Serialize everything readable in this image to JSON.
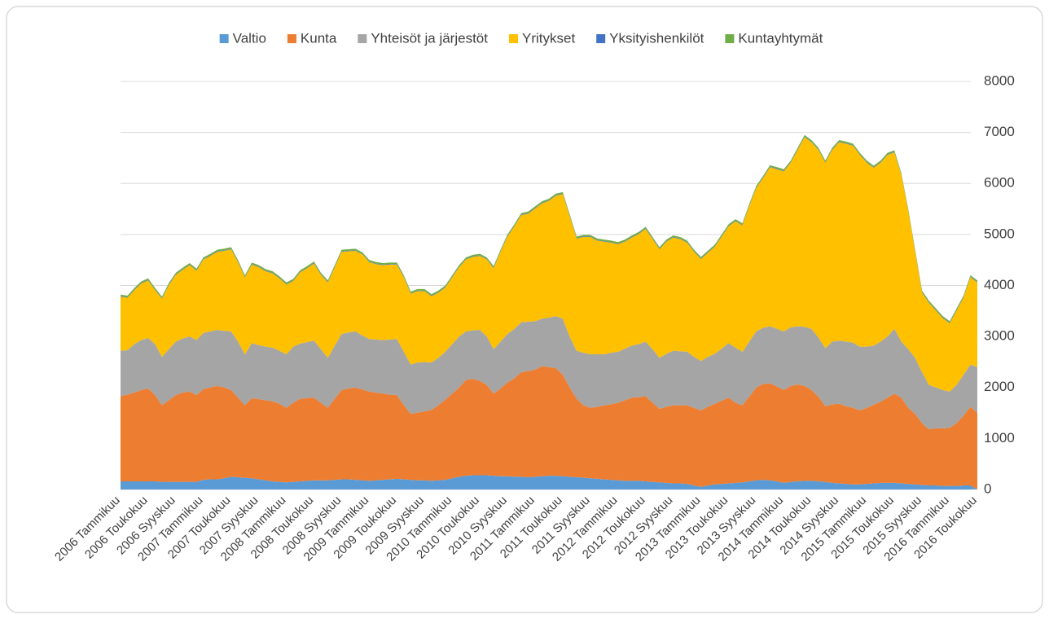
{
  "chart_data": {
    "type": "stacked-area",
    "categories": [
      "2006 Tammikuu",
      null,
      null,
      null,
      "2006 Toukokuu",
      null,
      null,
      null,
      "2006 Syyskuu",
      null,
      null,
      null,
      "2007 Tammikuu",
      null,
      null,
      null,
      "2007 Toukokuu",
      null,
      null,
      null,
      "2007 Syyskuu",
      null,
      null,
      null,
      "2008 Tammikuu",
      null,
      null,
      null,
      "2008 Toukokuu",
      null,
      null,
      null,
      "2008 Syyskuu",
      null,
      null,
      null,
      "2009 Tammikuu",
      null,
      null,
      null,
      "2009 Toukokuu",
      null,
      null,
      null,
      "2009 Syyskuu",
      null,
      null,
      null,
      "2010 Tammikuu",
      null,
      null,
      null,
      "2010 Toukokuu",
      null,
      null,
      null,
      "2010 Syyskuu",
      null,
      null,
      null,
      "2011 Tammikuu",
      null,
      null,
      null,
      "2011 Toukokuu",
      null,
      null,
      null,
      "2011 Syyskuu",
      null,
      null,
      null,
      "2012 Tammikuu",
      null,
      null,
      null,
      "2012 Toukokuu",
      null,
      null,
      null,
      "2012 Syyskuu",
      null,
      null,
      null,
      "2013 Tammikuu",
      null,
      null,
      null,
      "2013 Toukokuu",
      null,
      null,
      null,
      "2013 Syyskuu",
      null,
      null,
      null,
      "2014 Tammikuu",
      null,
      null,
      null,
      "2014 Toukokuu",
      null,
      null,
      null,
      "2014 Syyskuu",
      null,
      null,
      null,
      "2015 Tammikuu",
      null,
      null,
      null,
      "2015 Toukokuu",
      null,
      null,
      null,
      "2015 Syyskuu",
      null,
      null,
      null,
      "2016 Tammikuu",
      null,
      null,
      null,
      "2016 Toukokuu"
    ],
    "series": [
      {
        "name": "Valtio",
        "color": "#5b9bd5",
        "values": [
          160,
          160,
          160,
          160,
          160,
          160,
          150,
          150,
          150,
          150,
          150,
          150,
          190,
          200,
          200,
          220,
          250,
          240,
          230,
          220,
          200,
          180,
          160,
          150,
          140,
          150,
          160,
          170,
          180,
          180,
          180,
          190,
          200,
          200,
          190,
          180,
          170,
          180,
          190,
          200,
          210,
          200,
          190,
          180,
          180,
          170,
          180,
          190,
          220,
          250,
          270,
          280,
          280,
          280,
          270,
          260,
          260,
          250,
          250,
          240,
          250,
          260,
          270,
          270,
          260,
          250,
          240,
          230,
          220,
          210,
          200,
          190,
          180,
          170,
          170,
          170,
          160,
          150,
          140,
          130,
          120,
          120,
          110,
          80,
          50,
          80,
          100,
          110,
          120,
          130,
          140,
          160,
          180,
          190,
          180,
          160,
          130,
          150,
          160,
          170,
          170,
          160,
          150,
          130,
          120,
          110,
          100,
          100,
          110,
          120,
          130,
          130,
          130,
          120,
          110,
          100,
          90,
          80,
          80,
          70,
          70,
          70,
          80,
          80,
          0
        ]
      },
      {
        "name": "Kunta",
        "color": "#ed7d31",
        "values": [
          1670,
          1700,
          1740,
          1790,
          1820,
          1690,
          1500,
          1600,
          1700,
          1750,
          1770,
          1700,
          1780,
          1800,
          1830,
          1780,
          1700,
          1560,
          1420,
          1570,
          1570,
          1570,
          1570,
          1530,
          1460,
          1550,
          1620,
          1620,
          1620,
          1520,
          1420,
          1590,
          1750,
          1780,
          1810,
          1780,
          1750,
          1720,
          1690,
          1660,
          1640,
          1450,
          1290,
          1330,
          1350,
          1390,
          1470,
          1570,
          1660,
          1750,
          1880,
          1890,
          1850,
          1770,
          1610,
          1720,
          1840,
          1930,
          2050,
          2080,
          2100,
          2160,
          2130,
          2110,
          1990,
          1750,
          1540,
          1420,
          1380,
          1410,
          1450,
          1480,
          1520,
          1580,
          1630,
          1640,
          1670,
          1550,
          1440,
          1490,
          1530,
          1530,
          1540,
          1520,
          1500,
          1540,
          1580,
          1630,
          1680,
          1570,
          1510,
          1660,
          1820,
          1880,
          1900,
          1860,
          1820,
          1880,
          1900,
          1860,
          1780,
          1660,
          1480,
          1540,
          1560,
          1520,
          1500,
          1450,
          1490,
          1540,
          1590,
          1670,
          1750,
          1680,
          1490,
          1380,
          1210,
          1100,
          1120,
          1130,
          1140,
          1230,
          1370,
          1540,
          1500
        ]
      },
      {
        "name": "Yhteisöt ja järjestöt",
        "color": "#a5a5a5",
        "values": [
          890,
          870,
          950,
          980,
          990,
          1000,
          950,
          1000,
          1050,
          1060,
          1080,
          1080,
          1100,
          1100,
          1100,
          1110,
          1150,
          1100,
          1000,
          1080,
          1060,
          1050,
          1050,
          1040,
          1050,
          1100,
          1080,
          1100,
          1120,
          1050,
          980,
          1040,
          1100,
          1100,
          1100,
          1060,
          1030,
          1040,
          1050,
          1080,
          1100,
          1050,
          970,
          980,
          970,
          930,
          930,
          940,
          970,
          1000,
          950,
          950,
          1000,
          950,
          870,
          920,
          950,
          970,
          980,
          970,
          950,
          930,
          970,
          1020,
          1100,
          1000,
          940,
          1030,
          1050,
          1030,
          1000,
          1010,
          1000,
          1010,
          1020,
          1040,
          1070,
          1050,
          1000,
          1040,
          1070,
          1060,
          1050,
          1000,
          970,
          980,
          980,
          1020,
          1070,
          1080,
          1050,
          1080,
          1100,
          1100,
          1120,
          1130,
          1150,
          1150,
          1140,
          1160,
          1200,
          1160,
          1140,
          1230,
          1240,
          1270,
          1280,
          1250,
          1200,
          1160,
          1180,
          1200,
          1270,
          1100,
          1150,
          1100,
          1000,
          870,
          800,
          750,
          710,
          750,
          800,
          830,
          900
        ]
      },
      {
        "name": "Yritykset",
        "color": "#ffc000",
        "values": [
          1060,
          1030,
          1060,
          1110,
          1130,
          1060,
          1140,
          1260,
          1310,
          1350,
          1400,
          1360,
          1440,
          1480,
          1530,
          1570,
          1610,
          1560,
          1510,
          1540,
          1530,
          1480,
          1460,
          1420,
          1370,
          1290,
          1400,
          1450,
          1510,
          1460,
          1480,
          1540,
          1610,
          1590,
          1580,
          1590,
          1510,
          1480,
          1470,
          1470,
          1460,
          1460,
          1390,
          1400,
          1390,
          1300,
          1280,
          1260,
          1310,
          1360,
          1410,
          1440,
          1450,
          1510,
          1590,
          1760,
          1910,
          2010,
          2100,
          2120,
          2210,
          2260,
          2290,
          2360,
          2440,
          2360,
          2200,
          2270,
          2300,
          2230,
          2210,
          2160,
          2110,
          2100,
          2120,
          2160,
          2210,
          2160,
          2130,
          2200,
          2220,
          2200,
          2140,
          2060,
          2000,
          2040,
          2100,
          2200,
          2290,
          2480,
          2480,
          2660,
          2810,
          2940,
          3120,
          3130,
          3140,
          3230,
          3460,
          3720,
          3660,
          3680,
          3640,
          3760,
          3890,
          3880,
          3860,
          3760,
          3610,
          3490,
          3510,
          3560,
          3460,
          3260,
          2710,
          2080,
          1560,
          1610,
          1510,
          1410,
          1340,
          1460,
          1510,
          1710,
          1660
        ]
      },
      {
        "name": "Yksityishenkilöt",
        "color": "#4472c4",
        "values": [
          10,
          10,
          10,
          10,
          10,
          10,
          10,
          10,
          10,
          10,
          10,
          10,
          10,
          10,
          10,
          10,
          10,
          10,
          10,
          10,
          10,
          10,
          10,
          10,
          10,
          10,
          10,
          10,
          10,
          10,
          10,
          10,
          10,
          10,
          10,
          10,
          10,
          10,
          10,
          10,
          10,
          10,
          10,
          10,
          10,
          10,
          10,
          10,
          10,
          10,
          10,
          10,
          10,
          10,
          10,
          10,
          10,
          10,
          10,
          10,
          10,
          10,
          10,
          10,
          10,
          10,
          10,
          10,
          10,
          10,
          10,
          10,
          10,
          10,
          10,
          10,
          10,
          10,
          10,
          10,
          10,
          10,
          10,
          10,
          10,
          10,
          10,
          10,
          10,
          10,
          10,
          10,
          10,
          10,
          10,
          10,
          10,
          10,
          10,
          10,
          10,
          10,
          10,
          10,
          10,
          10,
          10,
          10,
          10,
          10,
          10,
          10,
          10,
          10,
          10,
          10,
          10,
          10,
          10,
          10,
          10,
          10,
          10,
          10,
          10
        ]
      },
      {
        "name": "Kuntayhtymät",
        "color": "#70ad47",
        "values": [
          30,
          30,
          30,
          30,
          30,
          30,
          30,
          30,
          30,
          30,
          30,
          30,
          30,
          30,
          30,
          30,
          30,
          30,
          30,
          30,
          30,
          30,
          30,
          30,
          30,
          30,
          30,
          30,
          30,
          30,
          30,
          30,
          30,
          30,
          30,
          30,
          30,
          30,
          30,
          30,
          30,
          30,
          30,
          30,
          30,
          30,
          30,
          30,
          30,
          30,
          30,
          30,
          30,
          30,
          30,
          30,
          30,
          30,
          30,
          30,
          30,
          30,
          30,
          30,
          30,
          30,
          30,
          30,
          30,
          30,
          30,
          30,
          30,
          30,
          30,
          30,
          30,
          30,
          30,
          30,
          30,
          30,
          30,
          30,
          30,
          30,
          30,
          30,
          30,
          30,
          30,
          30,
          30,
          30,
          30,
          30,
          30,
          30,
          30,
          30,
          30,
          30,
          30,
          30,
          30,
          30,
          30,
          30,
          30,
          30,
          30,
          30,
          30,
          30,
          30,
          30,
          30,
          30,
          30,
          30,
          30,
          30,
          30,
          30,
          30
        ]
      }
    ],
    "ylim": [
      0,
      8000
    ],
    "yticks": [
      0,
      1000,
      2000,
      3000,
      4000,
      5000,
      6000,
      7000,
      8000
    ],
    "grid": true,
    "legend": "top"
  }
}
